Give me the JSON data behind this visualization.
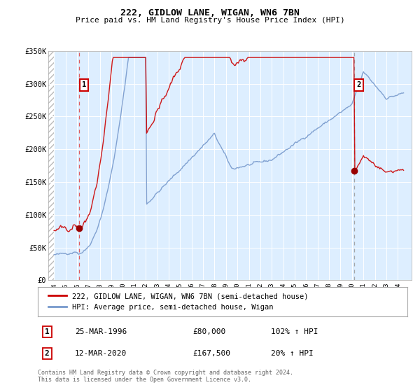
{
  "title": "222, GIDLOW LANE, WIGAN, WN6 7BN",
  "subtitle": "Price paid vs. HM Land Registry's House Price Index (HPI)",
  "ylim": [
    0,
    350000
  ],
  "yticks": [
    0,
    50000,
    100000,
    150000,
    200000,
    250000,
    300000,
    350000
  ],
  "ytick_labels": [
    "£0",
    "£50K",
    "£100K",
    "£150K",
    "£200K",
    "£250K",
    "£300K",
    "£350K"
  ],
  "xlim_start": 1993.5,
  "xlim_end": 2025.2,
  "background_color": "#ddeeff",
  "hatch_color": "#bbbbbb",
  "grid_color": "#ffffff",
  "sale1_x": 1996.21,
  "sale1_y": 80000,
  "sale1_label": "1",
  "sale1_date": "25-MAR-1996",
  "sale1_price": "£80,000",
  "sale1_hpi": "102% ↑ HPI",
  "sale2_x": 2020.21,
  "sale2_y": 167500,
  "sale2_label": "2",
  "sale2_date": "12-MAR-2020",
  "sale2_price": "£167,500",
  "sale2_hpi": "20% ↑ HPI",
  "line1_color": "#cc0000",
  "line2_color": "#7799cc",
  "marker_color": "#990000",
  "sale1_dashed_color": "#dd4444",
  "sale2_dashed_color": "#999999",
  "annotation_box_color": "#cc0000",
  "legend_label1": "222, GIDLOW LANE, WIGAN, WN6 7BN (semi-detached house)",
  "legend_label2": "HPI: Average price, semi-detached house, Wigan",
  "footer": "Contains HM Land Registry data © Crown copyright and database right 2024.\nThis data is licensed under the Open Government Licence v3.0."
}
